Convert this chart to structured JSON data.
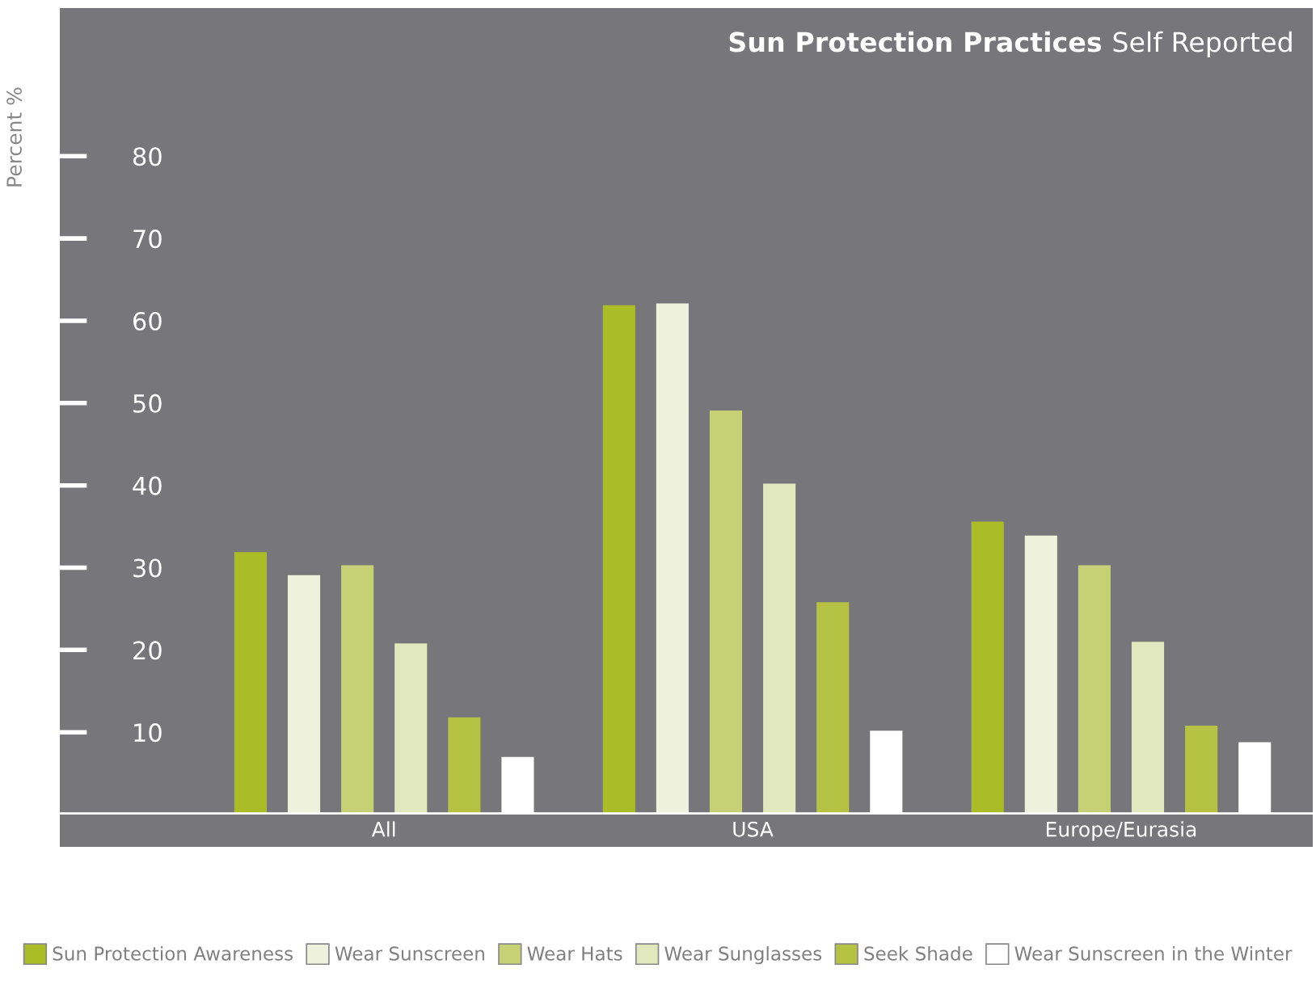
{
  "chart_data": {
    "type": "bar",
    "title": "Sun Protection Practices",
    "subtitle": "Self Reported",
    "ylabel": "Percent %",
    "categories": [
      "All",
      "USA",
      "Europe/Eurasia"
    ],
    "series": [
      {
        "name": "Sun Protection Awareness",
        "color": "#abbd26",
        "values": [
          31.9,
          61.9,
          35.6
        ]
      },
      {
        "name": "Wear Sunscreen",
        "color": "#eef2dc",
        "values": [
          29.1,
          62.1,
          33.9
        ]
      },
      {
        "name": "Wear Hats",
        "color": "#c6d176",
        "values": [
          30.3,
          49.1,
          30.3
        ]
      },
      {
        "name": "Wear Sunglasses",
        "color": "#e2e8bd",
        "values": [
          20.8,
          40.2,
          21.0
        ]
      },
      {
        "name": "Seek Shade",
        "color": "#b5c244",
        "values": [
          11.8,
          25.8,
          10.8
        ]
      },
      {
        "name": "Wear Sunscreen in the Winter",
        "color": "#ffffff",
        "values": [
          7.0,
          10.2,
          8.8
        ]
      }
    ],
    "ylim": [
      0,
      98
    ],
    "yticks": [
      10,
      20,
      30,
      40,
      50,
      60,
      70,
      80
    ],
    "grid": false,
    "legend": "bottom"
  }
}
